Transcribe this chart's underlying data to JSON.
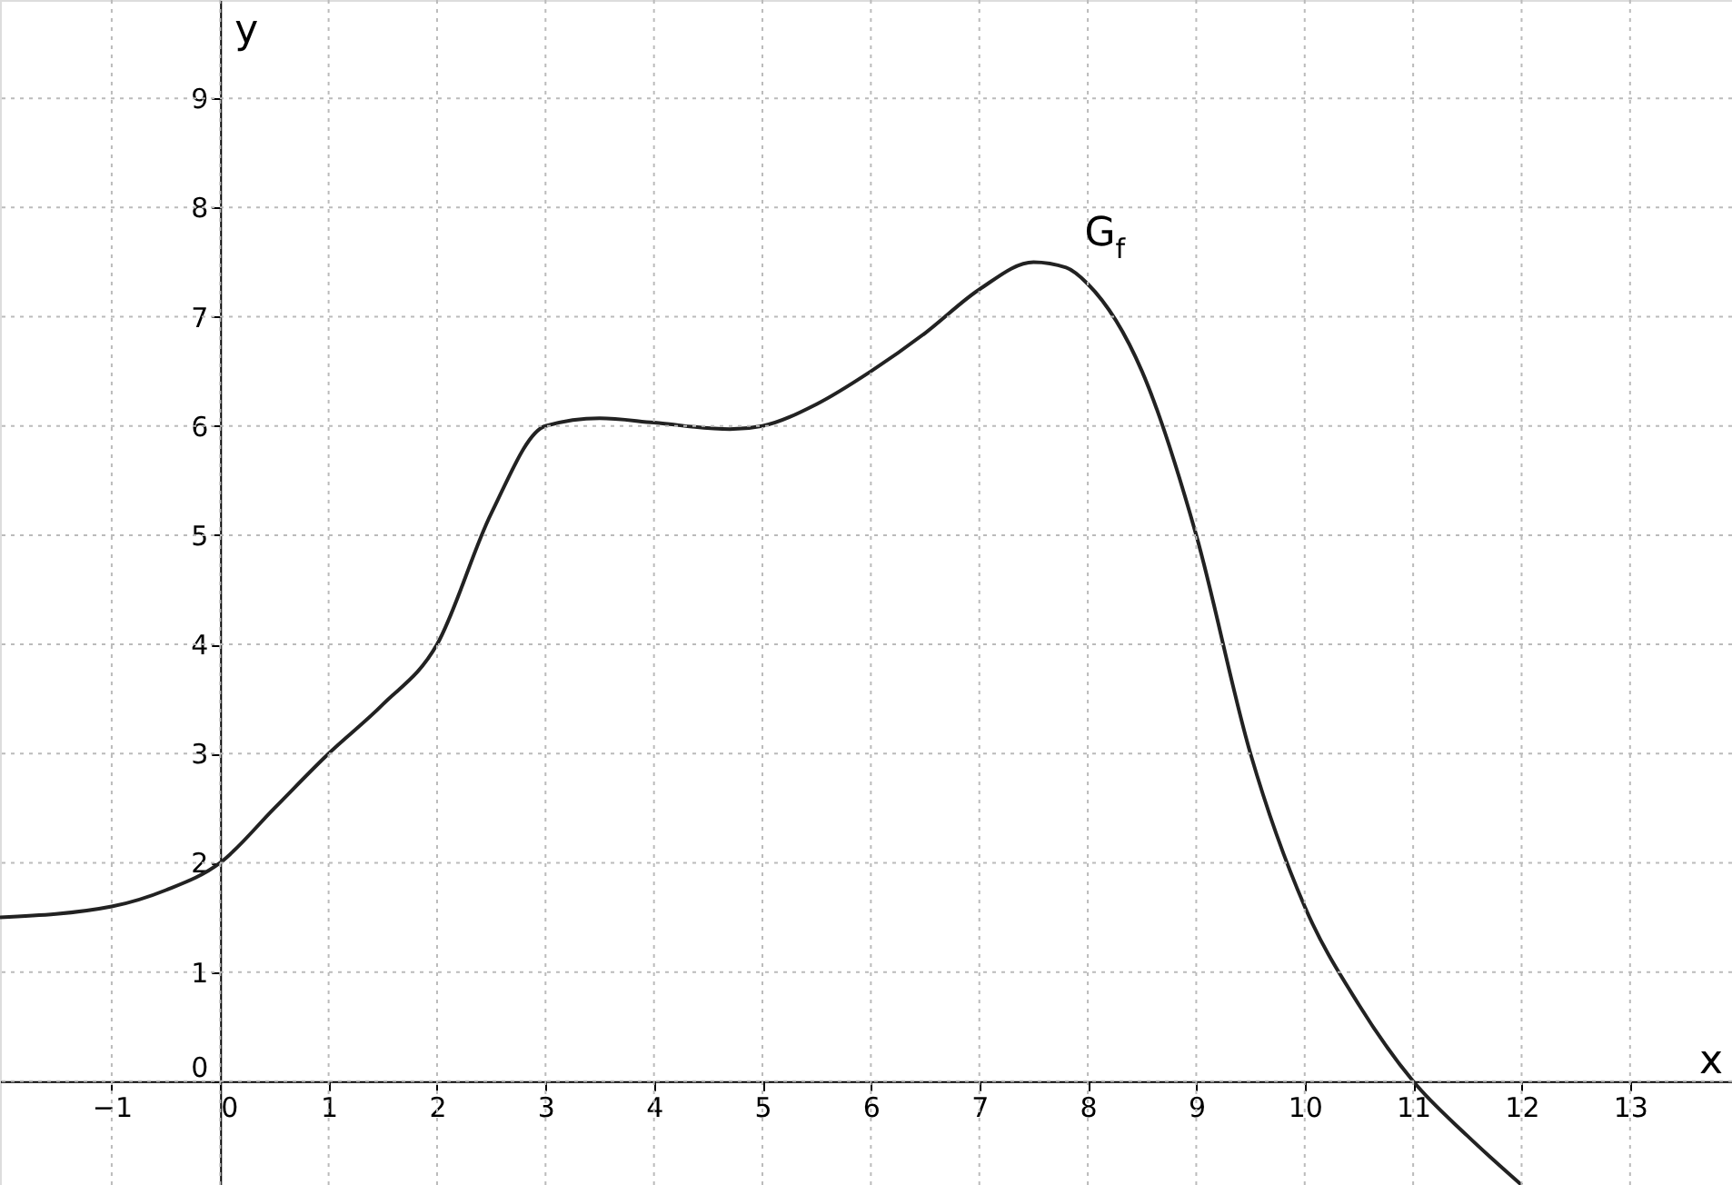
{
  "chart_data": {
    "type": "line",
    "xlabel": "x",
    "ylabel": "y",
    "x": [
      -2.03,
      -1,
      -0.5,
      0,
      0.5,
      1,
      1.5,
      2,
      2.5,
      3,
      3.5,
      4,
      4.7,
      5,
      5.5,
      6,
      6.5,
      7,
      7.5,
      7.8,
      8,
      8.5,
      9,
      9.5,
      10,
      10.5,
      11,
      11.5,
      12
    ],
    "series": [
      {
        "color": "#222222",
        "values": [
          1.5,
          1.6,
          1.75,
          2,
          2.5,
          3,
          3.45,
          4,
          5.2,
          6,
          6.07,
          6.03,
          5.97,
          6,
          6.2,
          6.5,
          6.85,
          7.25,
          7.5,
          7.45,
          7.3,
          6.5,
          5,
          3,
          1.6,
          0.7,
          0,
          -0.5,
          -0.95
        ]
      }
    ],
    "xlim": [
      -2.03,
      13.94
    ],
    "ylim": [
      -0.95,
      9.9
    ],
    "xticks": [
      -1,
      0,
      1,
      2,
      3,
      4,
      5,
      6,
      7,
      8,
      9,
      10,
      11,
      12,
      13
    ],
    "yticks": [
      0,
      1,
      2,
      3,
      4,
      5,
      6,
      7,
      8,
      9
    ],
    "grid": true,
    "marker": "none",
    "line_style": "solid",
    "annotations": [
      "G$_{f}$"
    ]
  }
}
